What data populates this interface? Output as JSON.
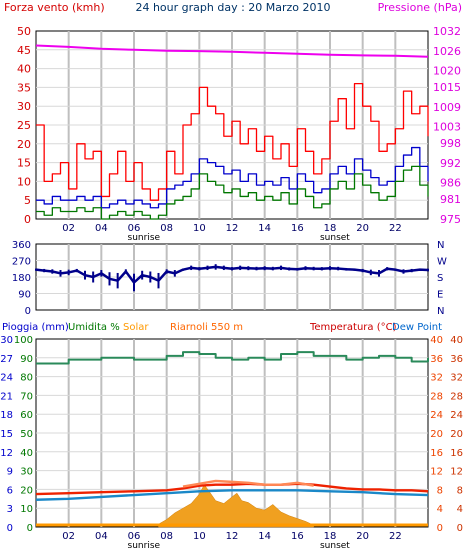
{
  "chart_data": [
    {
      "type": "line",
      "title": "24 hour graph day : 20 Marzo 2010",
      "left_axis": {
        "label": "Forza vento (kmh)",
        "ticks": [
          0,
          5,
          10,
          15,
          20,
          25,
          30,
          35,
          40,
          45,
          50
        ],
        "ylim": [
          0,
          50
        ],
        "color": "#d40000"
      },
      "right_axis": {
        "label": "Pressione (hPa)",
        "ticks": [
          975,
          981,
          986,
          992,
          998,
          1003,
          1009,
          1015,
          1020,
          1026,
          1032
        ],
        "ylim": [
          975,
          1032
        ],
        "color": "#dd00dd"
      },
      "xlim": [
        0,
        24
      ],
      "x_ticks": [
        "02",
        "04",
        "06",
        "08",
        "10",
        "12",
        "14",
        "16",
        "18",
        "20",
        "22"
      ],
      "x_annotations": [
        {
          "text": "sunrise",
          "x": 6.6
        },
        {
          "text": "sunset",
          "x": 18.3
        }
      ],
      "grid": true,
      "series": [
        {
          "name": "Pressione",
          "axis": "right",
          "color": "#ee00ee",
          "x": [
            0,
            2,
            4,
            6,
            8,
            10,
            12,
            14,
            16,
            18,
            20,
            22,
            24
          ],
          "values": [
            1027.6,
            1027.2,
            1026.6,
            1026.3,
            1026.0,
            1025.9,
            1025.7,
            1025.4,
            1025.1,
            1024.8,
            1024.6,
            1024.5,
            1024.2
          ]
        },
        {
          "name": "Raffica",
          "axis": "left",
          "color": "#ff0000",
          "x": [
            0,
            0.5,
            1,
            1.5,
            2,
            2.5,
            3,
            3.5,
            4,
            4.5,
            5,
            5.5,
            6,
            6.5,
            7,
            7.5,
            8,
            8.5,
            9,
            9.5,
            10,
            10.5,
            11,
            11.5,
            12,
            12.5,
            13,
            13.5,
            14,
            14.5,
            15,
            15.5,
            16,
            16.5,
            17,
            17.5,
            18,
            18.5,
            19,
            19.5,
            20,
            20.5,
            21,
            21.5,
            22,
            22.5,
            23,
            23.5,
            24
          ],
          "values": [
            25,
            10,
            12,
            15,
            8,
            20,
            16,
            18,
            6,
            12,
            18,
            10,
            15,
            8,
            5,
            8,
            18,
            12,
            25,
            28,
            35,
            30,
            28,
            22,
            26,
            20,
            24,
            18,
            22,
            16,
            20,
            14,
            24,
            18,
            12,
            16,
            26,
            32,
            24,
            36,
            30,
            26,
            18,
            20,
            24,
            34,
            28,
            30,
            22
          ]
        },
        {
          "name": "Velocita media",
          "axis": "left",
          "color": "#0000cc",
          "x": [
            0,
            0.5,
            1,
            1.5,
            2,
            2.5,
            3,
            3.5,
            4,
            4.5,
            5,
            5.5,
            6,
            6.5,
            7,
            7.5,
            8,
            8.5,
            9,
            9.5,
            10,
            10.5,
            11,
            11.5,
            12,
            12.5,
            13,
            13.5,
            14,
            14.5,
            15,
            15.5,
            16,
            16.5,
            17,
            17.5,
            18,
            18.5,
            19,
            19.5,
            20,
            20.5,
            21,
            21.5,
            22,
            22.5,
            23,
            23.5,
            24
          ],
          "values": [
            5,
            4,
            6,
            5,
            5,
            6,
            5,
            6,
            3,
            4,
            5,
            4,
            5,
            4,
            3,
            4,
            8,
            9,
            10,
            12,
            16,
            15,
            14,
            12,
            13,
            10,
            12,
            9,
            10,
            9,
            11,
            8,
            12,
            10,
            7,
            8,
            12,
            14,
            12,
            16,
            13,
            11,
            9,
            10,
            14,
            17,
            19,
            14,
            10
          ]
        },
        {
          "name": "Velocita min",
          "axis": "left",
          "color": "#007700",
          "x": [
            0,
            0.5,
            1,
            1.5,
            2,
            2.5,
            3,
            3.5,
            4,
            4.5,
            5,
            5.5,
            6,
            6.5,
            7,
            7.5,
            8,
            8.5,
            9,
            9.5,
            10,
            10.5,
            11,
            11.5,
            12,
            12.5,
            13,
            13.5,
            14,
            14.5,
            15,
            15.5,
            16,
            16.5,
            17,
            17.5,
            18,
            18.5,
            19,
            19.5,
            20,
            20.5,
            21,
            21.5,
            22,
            22.5,
            23,
            23.5,
            24
          ],
          "values": [
            2,
            1,
            3,
            2,
            2,
            3,
            2,
            3,
            0,
            1,
            2,
            1,
            2,
            1,
            0,
            1,
            4,
            5,
            6,
            8,
            12,
            10,
            9,
            7,
            8,
            6,
            7,
            5,
            6,
            5,
            7,
            4,
            8,
            6,
            3,
            4,
            8,
            10,
            8,
            12,
            9,
            7,
            5,
            6,
            10,
            13,
            14,
            9,
            6
          ]
        }
      ]
    },
    {
      "type": "scatter",
      "left_axis": {
        "ticks": [
          "360",
          "270",
          "180",
          "90",
          "0"
        ],
        "ylim": [
          0,
          360
        ]
      },
      "right_axis": {
        "ticks": [
          "N",
          "W",
          "S",
          "E",
          "N"
        ],
        "color": "#00008b"
      },
      "xlim": [
        0,
        24
      ],
      "grid": true,
      "series": [
        {
          "name": "Direzione vento",
          "color": "#00008b",
          "x": [
            0,
            0.5,
            1,
            1.5,
            2,
            2.5,
            3,
            3.5,
            4,
            4.5,
            5,
            5.5,
            6,
            6.5,
            7,
            7.5,
            8,
            8.5,
            9,
            9.5,
            10,
            10.5,
            11,
            11.5,
            12,
            12.5,
            13,
            13.5,
            14,
            14.5,
            15,
            15.5,
            16,
            16.5,
            17,
            17.5,
            18,
            18.5,
            19,
            19.5,
            20,
            20.5,
            21,
            21.5,
            22,
            22.5,
            23,
            23.5,
            24
          ],
          "values": [
            220,
            215,
            210,
            200,
            205,
            215,
            190,
            180,
            200,
            170,
            160,
            210,
            150,
            190,
            180,
            160,
            210,
            200,
            220,
            230,
            225,
            230,
            235,
            230,
            225,
            230,
            228,
            226,
            228,
            226,
            230,
            224,
            222,
            228,
            226,
            225,
            228,
            226,
            222,
            220,
            215,
            205,
            200,
            225,
            220,
            210,
            215,
            220,
            218
          ]
        }
      ]
    },
    {
      "type": "line",
      "legend": [
        "Pioggia (mm)",
        "Umidita %",
        "Solar",
        "Riarnoli 550 m",
        "Temperatura (°C)",
        "Dew Point"
      ],
      "legend_colors": [
        "#0000cc",
        "#007700",
        "#ff9900",
        "#ff6600",
        "#cc0000",
        "#0066cc"
      ],
      "axes_left": [
        {
          "label": "Pioggia (mm)",
          "ticks": [
            "0",
            "3",
            "6",
            "9",
            "12",
            "15",
            "18",
            "21",
            "24",
            "27",
            "30"
          ],
          "color": "#0000cc"
        },
        {
          "label": "Umidita %",
          "ticks": [
            "0",
            "10",
            "20",
            "30",
            "40",
            "50",
            "60",
            "70",
            "80",
            "90",
            "100"
          ],
          "color": "#007700"
        }
      ],
      "axes_right": [
        {
          "label": "Temperatura (°C)",
          "ticks": [
            "0",
            "4",
            "8",
            "12",
            "16",
            "20",
            "24",
            "28",
            "32",
            "36",
            "40"
          ],
          "color": "#ee4400"
        },
        {
          "label": "Dew Point",
          "ticks": [
            "0",
            "4",
            "8",
            "12",
            "16",
            "20",
            "24",
            "28",
            "32",
            "36",
            "40"
          ],
          "color": "#cc3300"
        }
      ],
      "xlim": [
        0,
        24
      ],
      "x_ticks": [
        "02",
        "04",
        "06",
        "08",
        "10",
        "12",
        "14",
        "16",
        "18",
        "20",
        "22"
      ],
      "x_annotations": [
        {
          "text": "sunrise",
          "x": 6.6
        },
        {
          "text": "sunset",
          "x": 18.3
        }
      ],
      "grid": true,
      "series": [
        {
          "name": "Umidita %",
          "color": "#2a8a5a",
          "x": [
            0,
            2,
            3,
            4,
            6,
            8,
            9,
            10,
            11,
            12,
            13,
            14,
            15,
            16,
            17,
            18,
            19,
            20,
            21,
            22,
            23,
            24
          ],
          "values": [
            87,
            89,
            89,
            90,
            89,
            91,
            93,
            92,
            90,
            89,
            90,
            89,
            92,
            93,
            91,
            91,
            89,
            90,
            91,
            90,
            88,
            90
          ]
        },
        {
          "name": "Temperatura",
          "color": "#ee2200",
          "x": [
            0,
            2,
            4,
            6,
            8,
            9,
            10,
            11,
            12,
            13,
            14,
            15,
            16,
            17,
            18,
            19,
            20,
            21,
            22,
            23,
            24
          ],
          "values": [
            7.0,
            7.2,
            7.4,
            7.6,
            7.8,
            8.2,
            8.8,
            9.0,
            9.0,
            9.2,
            9.0,
            9.0,
            9.2,
            9.0,
            8.6,
            8.2,
            8.0,
            8.0,
            7.8,
            7.8,
            7.6
          ]
        },
        {
          "name": "Riarnoli 550 m",
          "color": "#ff8855",
          "x": [
            9,
            10,
            11,
            12,
            13,
            14,
            15,
            16,
            17
          ],
          "values": [
            8.6,
            9.2,
            9.8,
            9.6,
            9.4,
            9.0,
            9.0,
            9.4,
            8.8
          ]
        },
        {
          "name": "Dew Point",
          "color": "#1a88c8",
          "x": [
            0,
            2,
            4,
            6,
            8,
            10,
            12,
            14,
            16,
            18,
            20,
            22,
            24
          ],
          "values": [
            5.8,
            6.0,
            6.4,
            6.8,
            7.2,
            7.6,
            7.8,
            7.8,
            7.8,
            7.6,
            7.4,
            7.0,
            6.8
          ]
        },
        {
          "name": "Solar",
          "color": "#f0a020",
          "x": [
            7.5,
            8,
            8.5,
            9,
            9.5,
            10,
            10.3,
            10.6,
            11,
            11.5,
            12,
            12.3,
            12.6,
            13,
            13.5,
            14,
            14.5,
            15,
            15.5,
            16,
            16.5,
            17
          ],
          "values": [
            0.3,
            0.8,
            1.5,
            2.0,
            2.5,
            3.5,
            4.5,
            3.8,
            2.8,
            2.5,
            3.2,
            3.6,
            2.8,
            2.6,
            2.0,
            1.8,
            2.4,
            1.6,
            1.2,
            0.9,
            0.6,
            0.2
          ]
        }
      ]
    }
  ]
}
